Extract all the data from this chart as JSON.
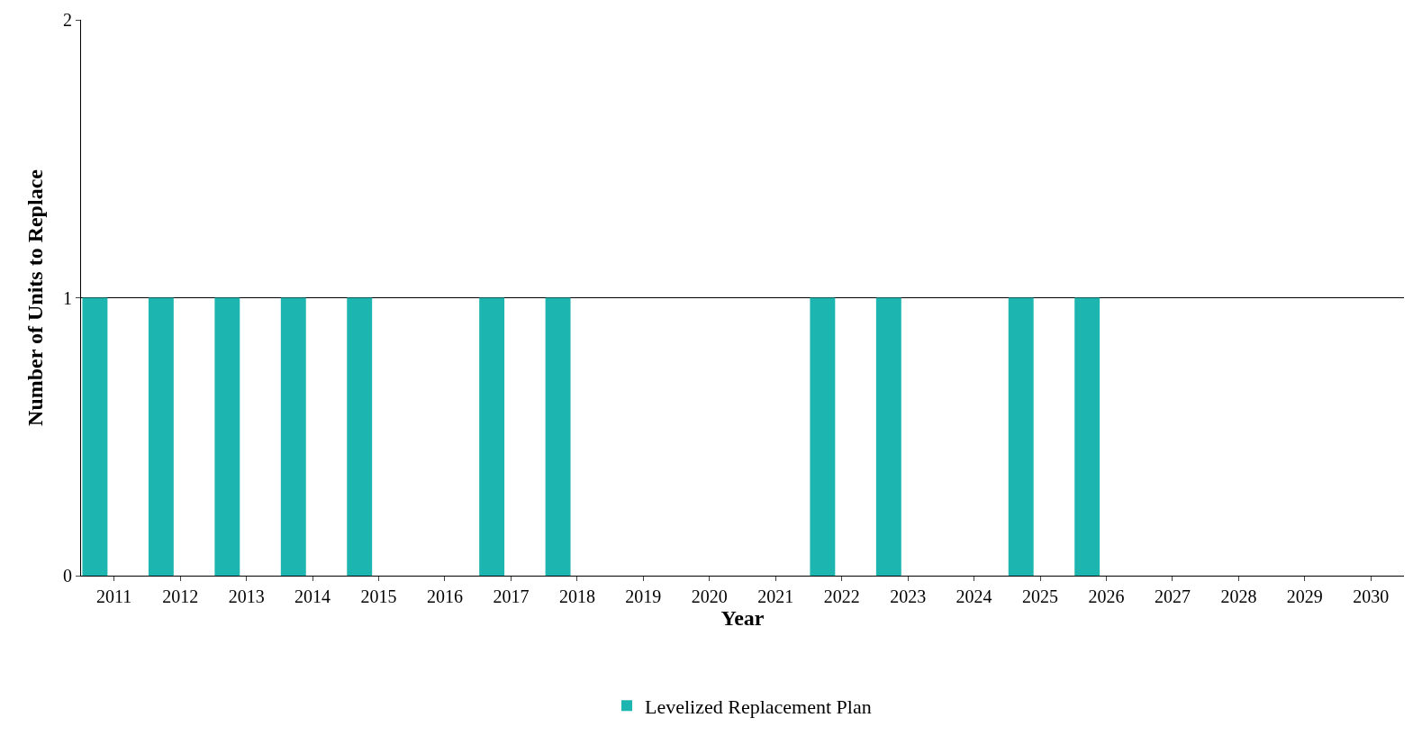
{
  "chart_data": {
    "type": "bar",
    "xlabel": "Year",
    "ylabel": "Number of Units to Replace",
    "categories": [
      "2011",
      "2012",
      "2013",
      "2014",
      "2015",
      "2016",
      "2017",
      "2018",
      "2019",
      "2020",
      "2021",
      "2022",
      "2023",
      "2024",
      "2025",
      "2026",
      "2027",
      "2028",
      "2029",
      "2030"
    ],
    "series": [
      {
        "name": "Levelized Replacement Plan",
        "color": "#1cb5b0",
        "values": [
          1,
          1,
          1,
          1,
          1,
          0,
          1,
          1,
          0,
          0,
          0,
          1,
          1,
          0,
          1,
          1,
          0,
          0,
          0,
          0
        ]
      }
    ],
    "ylim": [
      0,
      2
    ],
    "yticks": [
      0,
      1,
      2
    ],
    "grid": "y",
    "legend": "bottom"
  }
}
